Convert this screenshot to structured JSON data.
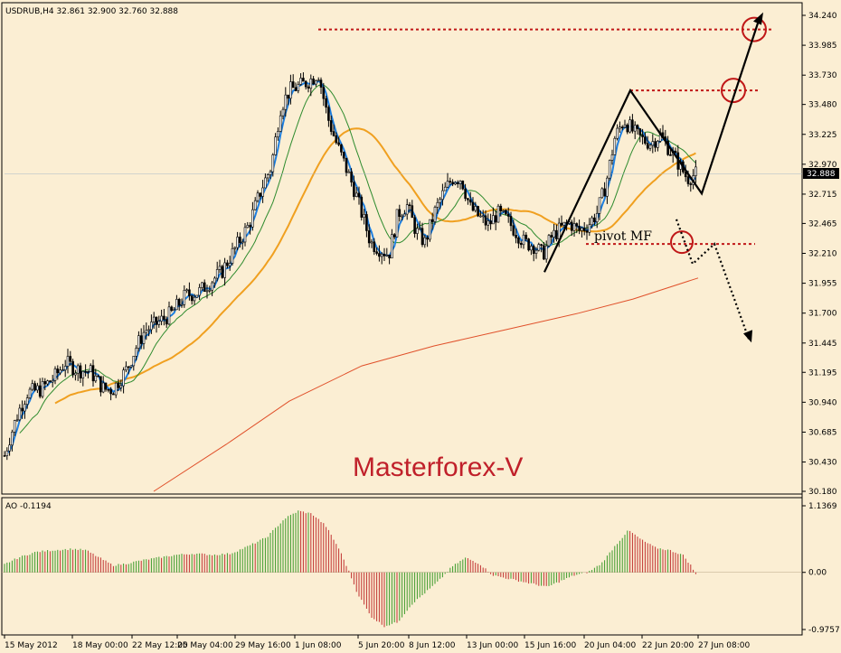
{
  "chart_data": [
    {
      "type": "candlestick",
      "title": "USDRUB,H4  32.861 32.900 32.760 32.888",
      "symbol": "USDRUB",
      "timeframe": "H4",
      "last_bar": {
        "open": 32.861,
        "high": 32.9,
        "low": 32.76,
        "close": 32.888
      },
      "current_price_label": "32.888",
      "ylim": [
        30.18,
        34.24
      ],
      "y_ticks": [
        "34.240",
        "33.985",
        "33.730",
        "33.480",
        "33.225",
        "32.970",
        "32.715",
        "32.465",
        "32.210",
        "31.955",
        "31.700",
        "31.445",
        "31.195",
        "30.940",
        "30.685",
        "30.430",
        "30.180"
      ],
      "x_ticks": [
        "15 May 2012",
        "18 May 00:00",
        "22 May 12:00",
        "25 May 04:00",
        "29 May 16:00",
        "1 Jun 08:00",
        "5 Jun 20:00",
        "8 Jun 12:00",
        "13 Jun 00:00",
        "15 Jun 16:00",
        "20 Jun 04:00",
        "22 Jun 20:00",
        "27 Jun 08:00"
      ],
      "grid": false,
      "overlays": {
        "moving_averages": [
          "blue fast MA",
          "green MA",
          "orange MA",
          "red long MA"
        ],
        "watermark": "Masterforex-V",
        "annotation": "pivot MF",
        "target_levels": [
          34.12,
          33.6,
          32.29
        ],
        "pivot_level": 32.29
      },
      "close_path": [
        [
          0,
          30.35
        ],
        [
          10,
          30.62
        ],
        [
          20,
          30.85
        ],
        [
          30,
          31.02
        ],
        [
          45,
          31.05
        ],
        [
          60,
          31.15
        ],
        [
          72,
          31.28
        ],
        [
          85,
          31.22
        ],
        [
          100,
          31.2
        ],
        [
          115,
          31.05
        ],
        [
          125,
          31.05
        ],
        [
          140,
          31.22
        ],
        [
          150,
          31.4
        ],
        [
          160,
          31.55
        ],
        [
          175,
          31.62
        ],
        [
          190,
          31.7
        ],
        [
          205,
          31.85
        ],
        [
          220,
          31.88
        ],
        [
          230,
          31.95
        ],
        [
          245,
          32.05
        ],
        [
          260,
          32.25
        ],
        [
          275,
          32.45
        ],
        [
          290,
          32.78
        ],
        [
          300,
          32.95
        ],
        [
          310,
          33.45
        ],
        [
          320,
          33.6
        ],
        [
          335,
          33.65
        ],
        [
          345,
          33.7
        ],
        [
          352,
          33.75
        ],
        [
          362,
          33.38
        ],
        [
          372,
          33.15
        ],
        [
          382,
          32.95
        ],
        [
          392,
          32.75
        ],
        [
          400,
          32.55
        ],
        [
          410,
          32.3
        ],
        [
          420,
          32.25
        ],
        [
          430,
          32.2
        ],
        [
          440,
          32.55
        ],
        [
          450,
          32.62
        ],
        [
          460,
          32.4
        ],
        [
          470,
          32.3
        ],
        [
          480,
          32.55
        ],
        [
          490,
          32.72
        ],
        [
          500,
          32.85
        ],
        [
          510,
          32.85
        ],
        [
          520,
          32.6
        ],
        [
          530,
          32.52
        ],
        [
          540,
          32.45
        ],
        [
          550,
          32.55
        ],
        [
          560,
          32.5
        ],
        [
          570,
          32.4
        ],
        [
          580,
          32.3
        ],
        [
          590,
          32.28
        ],
        [
          600,
          32.2
        ],
        [
          610,
          32.35
        ],
        [
          620,
          32.42
        ],
        [
          630,
          32.47
        ],
        [
          640,
          32.4
        ],
        [
          650,
          32.45
        ],
        [
          660,
          32.55
        ],
        [
          670,
          32.8
        ],
        [
          680,
          33.2
        ],
        [
          690,
          33.35
        ],
        [
          700,
          33.25
        ],
        [
          710,
          33.18
        ],
        [
          720,
          33.15
        ],
        [
          730,
          33.22
        ],
        [
          740,
          33.1
        ],
        [
          750,
          32.98
        ],
        [
          760,
          32.85
        ],
        [
          770,
          32.888
        ]
      ]
    },
    {
      "type": "bar",
      "title": "AO -0.1194",
      "indicator": "AO",
      "value": -0.1194,
      "ylim": [
        -0.9757,
        1.1369
      ],
      "y_ticks": [
        "1.1369",
        "0.00",
        "-0.9757"
      ],
      "colors": {
        "up": "#3a9a2a",
        "down": "#c03030"
      },
      "profile": [
        [
          0,
          0.1
        ],
        [
          20,
          0.25
        ],
        [
          40,
          0.35
        ],
        [
          60,
          0.38
        ],
        [
          80,
          0.4
        ],
        [
          95,
          0.38
        ],
        [
          110,
          0.25
        ],
        [
          125,
          0.12
        ],
        [
          140,
          0.15
        ],
        [
          155,
          0.2
        ],
        [
          175,
          0.25
        ],
        [
          195,
          0.3
        ],
        [
          215,
          0.32
        ],
        [
          235,
          0.3
        ],
        [
          255,
          0.32
        ],
        [
          275,
          0.45
        ],
        [
          295,
          0.6
        ],
        [
          315,
          0.92
        ],
        [
          330,
          1.05
        ],
        [
          345,
          1.0
        ],
        [
          360,
          0.8
        ],
        [
          375,
          0.4
        ],
        [
          385,
          0.05
        ],
        [
          395,
          -0.35
        ],
        [
          410,
          -0.75
        ],
        [
          425,
          -0.92
        ],
        [
          440,
          -0.85
        ],
        [
          455,
          -0.55
        ],
        [
          470,
          -0.35
        ],
        [
          485,
          -0.15
        ],
        [
          500,
          0.1
        ],
        [
          515,
          0.25
        ],
        [
          530,
          0.15
        ],
        [
          545,
          -0.05
        ],
        [
          560,
          -0.1
        ],
        [
          575,
          -0.15
        ],
        [
          590,
          -0.2
        ],
        [
          605,
          -0.25
        ],
        [
          620,
          -0.15
        ],
        [
          635,
          -0.05
        ],
        [
          650,
          0.0
        ],
        [
          665,
          0.15
        ],
        [
          680,
          0.45
        ],
        [
          695,
          0.72
        ],
        [
          710,
          0.55
        ],
        [
          725,
          0.42
        ],
        [
          740,
          0.38
        ],
        [
          755,
          0.3
        ],
        [
          765,
          0.1
        ],
        [
          772,
          -0.12
        ]
      ]
    }
  ]
}
